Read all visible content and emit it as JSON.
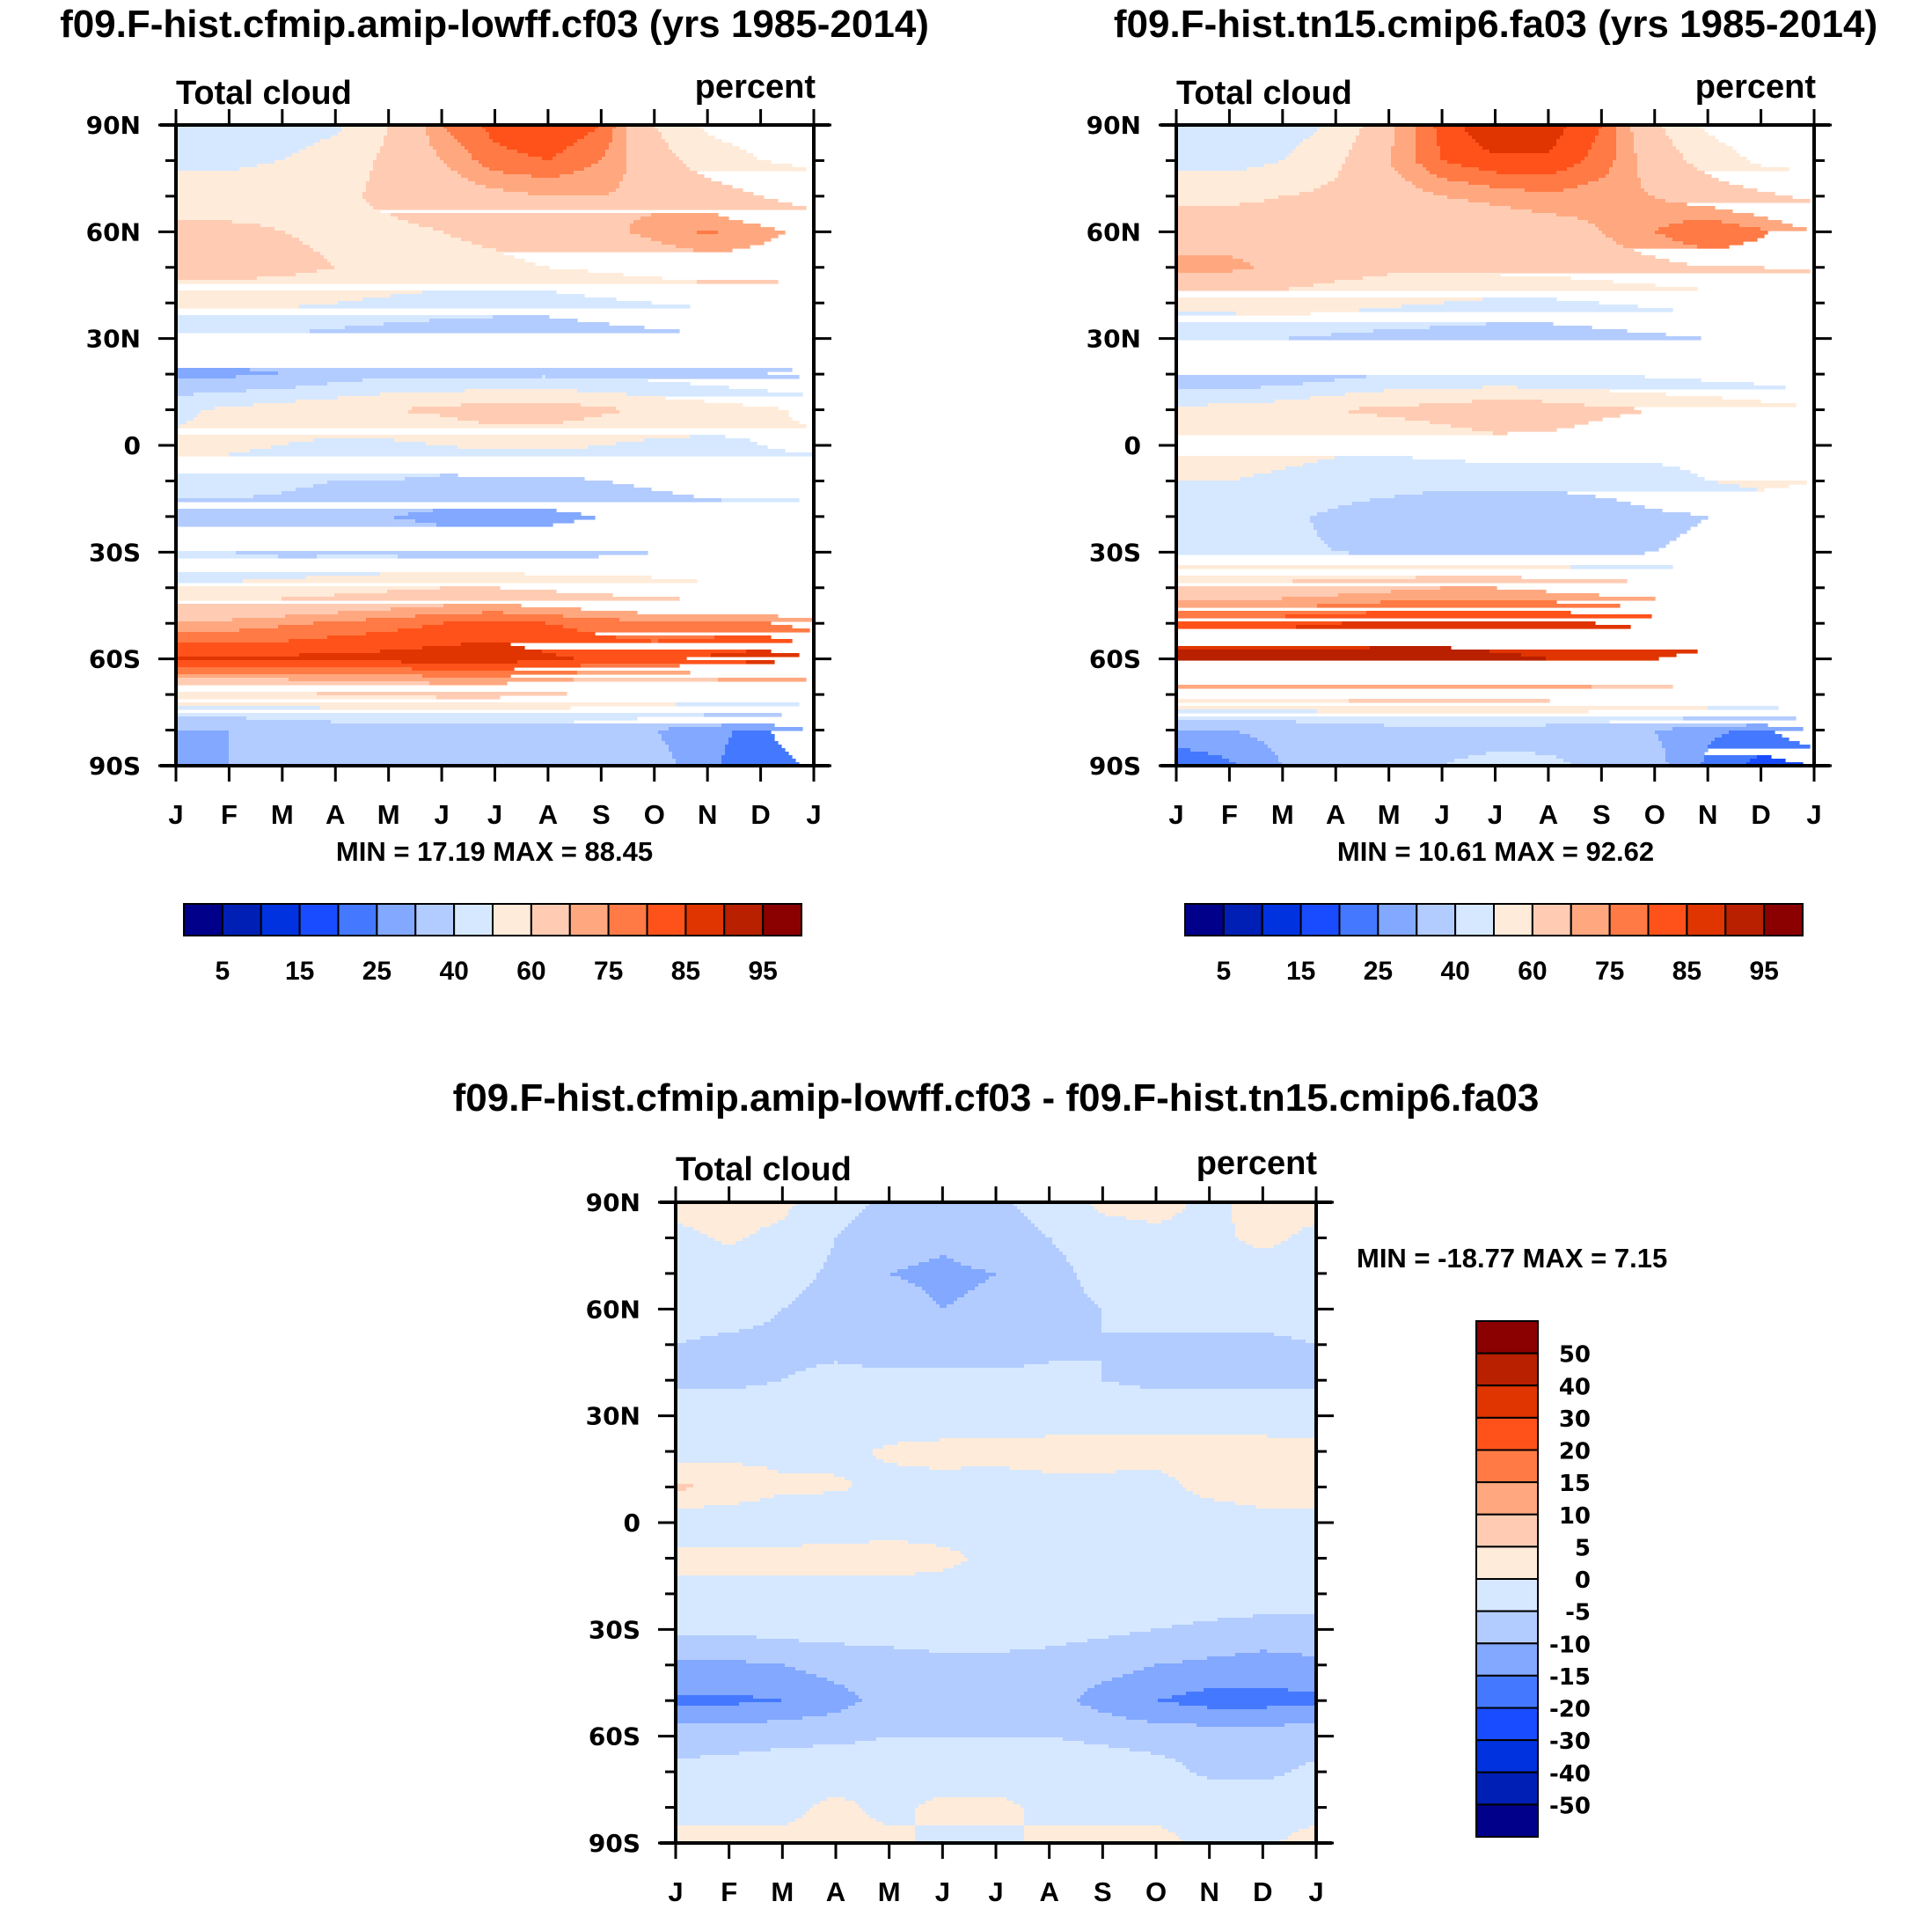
{
  "chart_data": [
    {
      "type": "heatmap",
      "title": "f09.F-hist.cfmip.amip-lowff.cf03 (yrs 1985-2014)",
      "left_label": "Total cloud",
      "right_label": "percent",
      "xlabel": "",
      "ylabel": "",
      "x_ticks": [
        "J",
        "F",
        "M",
        "A",
        "M",
        "J",
        "J",
        "A",
        "S",
        "O",
        "N",
        "D",
        "J"
      ],
      "y_ticks": [
        "90N",
        "60N",
        "30N",
        "0",
        "30S",
        "60S",
        "90S"
      ],
      "y_range": [
        -90,
        90
      ],
      "stats_text": "MIN =  17.19 MAX =  88.45",
      "min": 17.19,
      "max": 88.45,
      "colorbar": {
        "orientation": "horizontal",
        "levels": [
          5,
          10,
          15,
          20,
          25,
          30,
          40,
          50,
          60,
          70,
          75,
          80,
          85,
          90,
          95
        ],
        "labels": [
          "5",
          "15",
          "25",
          "40",
          "60",
          "75",
          "85",
          "95"
        ]
      },
      "lat": [
        90,
        80,
        70,
        60,
        50,
        40,
        30,
        20,
        10,
        0,
        -10,
        -20,
        -30,
        -40,
        -50,
        -60,
        -70,
        -80,
        -90
      ],
      "months": [
        "J",
        "F",
        "M",
        "A",
        "M",
        "J",
        "J",
        "A",
        "S",
        "O",
        "N",
        "D",
        "J"
      ],
      "values": [
        [
          45,
          45,
          45,
          48,
          60,
          75,
          82,
          85,
          80,
          60,
          48,
          45,
          45
        ],
        [
          48,
          48,
          50,
          55,
          62,
          70,
          78,
          80,
          75,
          65,
          55,
          50,
          48
        ],
        [
          55,
          55,
          57,
          58,
          62,
          65,
          68,
          70,
          70,
          68,
          65,
          60,
          55
        ],
        [
          62,
          62,
          60,
          58,
          58,
          60,
          62,
          65,
          68,
          72,
          76,
          72,
          68
        ],
        [
          64,
          64,
          63,
          60,
          58,
          57,
          58,
          60,
          62,
          64,
          66,
          66,
          64
        ],
        [
          52,
          52,
          52,
          50,
          48,
          46,
          45,
          45,
          48,
          50,
          52,
          52,
          52
        ],
        [
          38,
          38,
          38,
          36,
          34,
          33,
          32,
          32,
          34,
          36,
          38,
          38,
          38
        ],
        [
          28,
          28,
          30,
          34,
          38,
          38,
          38,
          38,
          38,
          36,
          33,
          30,
          28
        ],
        [
          48,
          52,
          55,
          58,
          60,
          62,
          66,
          66,
          62,
          58,
          55,
          52,
          48
        ],
        [
          52,
          52,
          50,
          48,
          48,
          50,
          52,
          52,
          50,
          48,
          48,
          50,
          52
        ],
        [
          44,
          44,
          42,
          40,
          40,
          38,
          38,
          38,
          40,
          42,
          44,
          46,
          44
        ],
        [
          36,
          36,
          36,
          33,
          30,
          28,
          28,
          28,
          30,
          34,
          36,
          36,
          36
        ],
        [
          40,
          40,
          38,
          38,
          38,
          36,
          36,
          36,
          38,
          40,
          40,
          40,
          40
        ],
        [
          52,
          52,
          54,
          56,
          58,
          60,
          60,
          58,
          56,
          54,
          52,
          52,
          52
        ],
        [
          72,
          72,
          74,
          76,
          78,
          80,
          82,
          80,
          78,
          76,
          76,
          76,
          72
        ],
        [
          86,
          86,
          86,
          87,
          87,
          88,
          88,
          86,
          84,
          84,
          86,
          88,
          86
        ],
        [
          58,
          58,
          58,
          60,
          60,
          62,
          62,
          60,
          58,
          58,
          58,
          58,
          58
        ],
        [
          30,
          30,
          33,
          34,
          35,
          36,
          36,
          35,
          33,
          30,
          26,
          24,
          30
        ],
        [
          26,
          30,
          34,
          36,
          38,
          40,
          40,
          40,
          38,
          33,
          26,
          22,
          26
        ]
      ]
    },
    {
      "type": "heatmap",
      "title": "f09.F-hist.tn15.cmip6.fa03 (yrs 1985-2014)",
      "left_label": "Total cloud",
      "right_label": "percent",
      "xlabel": "",
      "ylabel": "",
      "x_ticks": [
        "J",
        "F",
        "M",
        "A",
        "M",
        "J",
        "J",
        "A",
        "S",
        "O",
        "N",
        "D",
        "J"
      ],
      "y_ticks": [
        "90N",
        "60N",
        "30N",
        "0",
        "30S",
        "60S",
        "90S"
      ],
      "y_range": [
        -90,
        90
      ],
      "stats_text": "MIN =  10.61 MAX =  92.62",
      "min": 10.61,
      "max": 92.62,
      "colorbar": {
        "orientation": "horizontal",
        "levels": [
          5,
          10,
          15,
          20,
          25,
          30,
          40,
          50,
          60,
          70,
          75,
          80,
          85,
          90,
          95
        ],
        "labels": [
          "5",
          "15",
          "25",
          "40",
          "60",
          "75",
          "85",
          "95"
        ]
      },
      "lat": [
        90,
        80,
        70,
        60,
        50,
        40,
        30,
        20,
        10,
        0,
        -10,
        -20,
        -30,
        -40,
        -50,
        -60,
        -70,
        -80,
        -90
      ],
      "months": [
        "J",
        "F",
        "M",
        "A",
        "M",
        "J",
        "J",
        "A",
        "S",
        "O",
        "N",
        "D",
        "J"
      ],
      "values": [
        [
          40,
          42,
          44,
          52,
          68,
          82,
          90,
          88,
          80,
          62,
          48,
          42,
          40
        ],
        [
          46,
          46,
          50,
          58,
          70,
          80,
          84,
          84,
          78,
          66,
          56,
          48,
          46
        ],
        [
          58,
          58,
          60,
          62,
          66,
          70,
          72,
          74,
          72,
          70,
          66,
          62,
          58
        ],
        [
          66,
          66,
          64,
          62,
          62,
          63,
          64,
          66,
          70,
          75,
          80,
          76,
          70
        ],
        [
          72,
          72,
          68,
          64,
          62,
          62,
          63,
          64,
          66,
          68,
          70,
          70,
          72
        ],
        [
          54,
          54,
          55,
          54,
          52,
          50,
          48,
          48,
          50,
          52,
          54,
          54,
          54
        ],
        [
          40,
          40,
          40,
          38,
          36,
          35,
          34,
          34,
          36,
          38,
          40,
          40,
          40
        ],
        [
          30,
          30,
          32,
          36,
          40,
          40,
          40,
          40,
          40,
          38,
          36,
          34,
          30
        ],
        [
          52,
          54,
          56,
          60,
          62,
          64,
          68,
          66,
          62,
          60,
          58,
          55,
          52
        ],
        [
          56,
          56,
          54,
          52,
          52,
          54,
          56,
          56,
          54,
          52,
          52,
          54,
          56
        ],
        [
          50,
          50,
          48,
          46,
          45,
          44,
          44,
          44,
          45,
          48,
          50,
          52,
          50
        ],
        [
          44,
          44,
          42,
          38,
          34,
          30,
          30,
          30,
          34,
          38,
          40,
          44,
          44
        ],
        [
          44,
          44,
          42,
          40,
          38,
          38,
          38,
          38,
          38,
          40,
          42,
          44,
          44
        ],
        [
          62,
          62,
          64,
          66,
          68,
          70,
          70,
          68,
          66,
          64,
          62,
          62,
          62
        ],
        [
          84,
          84,
          84,
          85,
          86,
          86,
          86,
          86,
          85,
          84,
          84,
          84,
          84
        ],
        [
          92,
          92,
          92,
          92,
          92,
          92,
          91,
          90,
          90,
          90,
          92,
          92,
          92
        ],
        [
          64,
          64,
          64,
          65,
          66,
          66,
          66,
          65,
          64,
          64,
          64,
          64,
          64
        ],
        [
          30,
          30,
          32,
          34,
          36,
          37,
          37,
          36,
          33,
          30,
          26,
          24,
          30
        ],
        [
          20,
          24,
          30,
          34,
          38,
          40,
          42,
          42,
          38,
          32,
          24,
          18,
          20
        ]
      ]
    },
    {
      "type": "heatmap",
      "title": "f09.F-hist.cfmip.amip-lowff.cf03 - f09.F-hist.tn15.cmip6.fa03",
      "left_label": "Total cloud",
      "right_label": "percent",
      "xlabel": "",
      "ylabel": "",
      "x_ticks": [
        "J",
        "F",
        "M",
        "A",
        "M",
        "J",
        "J",
        "A",
        "S",
        "O",
        "N",
        "D",
        "J"
      ],
      "y_ticks": [
        "90N",
        "60N",
        "30N",
        "0",
        "30S",
        "60S",
        "90S"
      ],
      "y_range": [
        -90,
        90
      ],
      "stats_text": "MIN = -18.77 MAX =   7.15",
      "min": -18.77,
      "max": 7.15,
      "colorbar": {
        "orientation": "vertical",
        "levels": [
          -50,
          -40,
          -30,
          -20,
          -15,
          -10,
          -5,
          0,
          5,
          10,
          15,
          20,
          30,
          40,
          50
        ],
        "labels": [
          "50",
          "40",
          "30",
          "20",
          "15",
          "10",
          "5",
          "0",
          "-5",
          "-10",
          "-15",
          "-20",
          "-30",
          "-40",
          "-50"
        ]
      },
      "lat": [
        90,
        80,
        70,
        60,
        50,
        40,
        30,
        20,
        10,
        0,
        -10,
        -20,
        -30,
        -40,
        -50,
        -60,
        -70,
        -80,
        -90
      ],
      "months": [
        "J",
        "F",
        "M",
        "A",
        "M",
        "J",
        "J",
        "A",
        "S",
        "O",
        "N",
        "D",
        "J"
      ],
      "values": [
        [
          1.5,
          1.5,
          1,
          -3,
          -6,
          -7,
          -6,
          -3,
          1,
          1.5,
          -1,
          1.5,
          1.5
        ],
        [
          -1,
          0.5,
          -1,
          -5,
          -8,
          -9,
          -7,
          -5,
          -2,
          -1,
          -1,
          1,
          -1
        ],
        [
          -2,
          -2,
          -3,
          -6,
          -10,
          -11,
          -10,
          -7,
          -3,
          -2,
          -2,
          -2,
          -2
        ],
        [
          -3,
          -3,
          -5,
          -7,
          -8,
          -10,
          -9,
          -7,
          -5,
          -3,
          -3,
          -3,
          -3
        ],
        [
          -5,
          -6,
          -6,
          -6,
          -7,
          -7,
          -7,
          -6,
          -5,
          -6,
          -6,
          -6,
          -5
        ],
        [
          -6,
          -6,
          -5,
          -4,
          -4,
          -4,
          -4,
          -4,
          -5,
          -6,
          -6,
          -6,
          -6
        ],
        [
          -2,
          -2,
          -2,
          -2,
          -2,
          -2,
          -3,
          -2,
          -2,
          -2,
          -2,
          -2,
          -2
        ],
        [
          -3,
          -2,
          -1.5,
          -1,
          0.5,
          1,
          1.5,
          1.5,
          1.5,
          2,
          2,
          1.5,
          1
        ],
        [
          6,
          4,
          1,
          0.5,
          -1,
          -1,
          -2,
          -1,
          -1,
          -2,
          2,
          3,
          3
        ],
        [
          -4,
          -4,
          -4,
          -3,
          -2,
          -2,
          -2,
          -1,
          -4,
          -4,
          -4,
          -2,
          -2
        ],
        [
          2,
          2,
          2,
          2,
          2,
          1,
          -1,
          -1,
          -1,
          -2,
          -2,
          -2,
          -2
        ],
        [
          -2,
          -2,
          -2,
          -2,
          -2,
          -2,
          -2,
          -2,
          -2,
          -2,
          -2,
          -2,
          -2
        ],
        [
          -4,
          -4,
          -3,
          -3,
          -3,
          -3,
          -3,
          -3,
          -4,
          -5,
          -6,
          -7,
          -7
        ],
        [
          -11,
          -11,
          -10,
          -8,
          -7,
          -6,
          -6,
          -7,
          -8,
          -10,
          -11,
          -12,
          -11
        ],
        [
          -16,
          -16,
          -15,
          -12,
          -8,
          -6,
          -6,
          -8,
          -12,
          -15,
          -17,
          -17,
          -16
        ],
        [
          -7,
          -7,
          -6,
          -6,
          -5,
          -5,
          -5,
          -5,
          -6,
          -7,
          -7,
          -7,
          -7
        ],
        [
          -4,
          -3,
          -3,
          -2,
          -2,
          -2,
          -2,
          -2,
          -2,
          -3,
          -6,
          -6,
          -4
        ],
        [
          -2,
          -1,
          -1,
          1,
          -1,
          1,
          1,
          -1,
          -1,
          -1,
          -1,
          -2,
          -2
        ],
        [
          2,
          1,
          1,
          0.5,
          1,
          -1,
          -1,
          1,
          1,
          1,
          -1,
          -1,
          2
        ]
      ]
    }
  ],
  "diff_title": "f09.F-hist.cfmip.amip-lowff.cf03 - f09.F-hist.tn15.cmip6.fa03",
  "colors": [
    "#00008b",
    "#001fb4",
    "#0032df",
    "#1a4cff",
    "#4479ff",
    "#82a8ff",
    "#b3ccff",
    "#d6e8ff",
    "#ffebd9",
    "#ffccb3",
    "#ffa880",
    "#ff7a45",
    "#ff521a",
    "#e03500",
    "#b82000",
    "#8b0000"
  ]
}
